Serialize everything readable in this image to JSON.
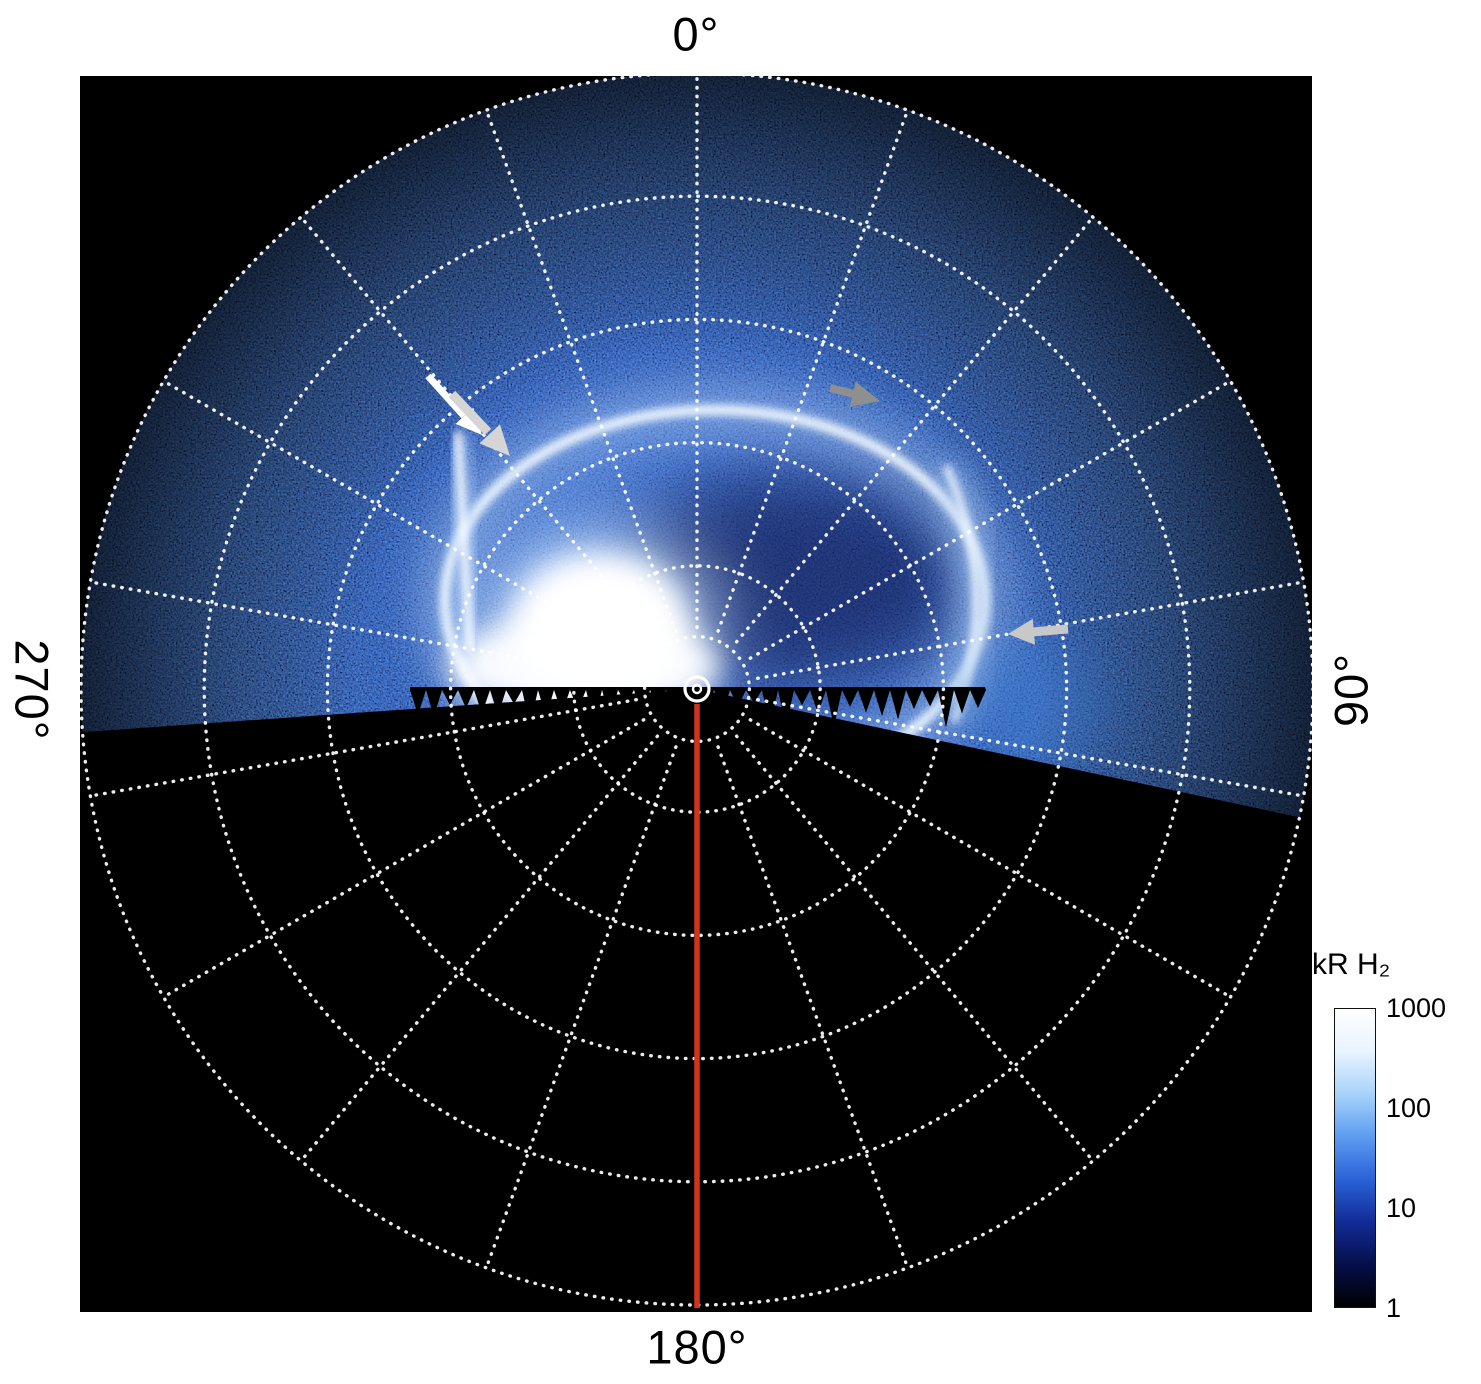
{
  "figure": {
    "angle_labels": {
      "top": "0°",
      "right": "90°",
      "bottom": "180°",
      "left": "270°"
    },
    "colorbar": {
      "title": "kR H₂",
      "ticks": [
        "1000",
        "100",
        "10",
        "1"
      ]
    }
  },
  "chart_data": {
    "type": "heatmap",
    "projection": "polar",
    "subject": "Polar projection map of auroral H2 emission intensity",
    "intensity_unit": "kR H₂",
    "intensity_scale": "log",
    "intensity_range": [
      1,
      1000
    ],
    "colorbar_ticks": [
      1000,
      100,
      10,
      1
    ],
    "colormap": [
      "#000000",
      "#060f4a",
      "#122c96",
      "#2a62d8",
      "#5d9cf0",
      "#a8d2fa",
      "#e8f4ff",
      "#ffffff"
    ],
    "angular_tick_labels": {
      "0": "0°",
      "90": "90°",
      "180": "180°",
      "270": "270°"
    },
    "grid": {
      "style": "dotted",
      "color": "#ffffff",
      "rings_fraction": [
        0.085,
        0.2,
        0.4,
        0.6,
        0.8,
        1.0
      ],
      "spoke_step_deg": 20,
      "spoke_inner_fraction": 0.1
    },
    "coverage_deg": [
      -94,
      102
    ],
    "background_color": "#000000",
    "meridian_marker": {
      "angle_deg": 180,
      "color": "#d2331c"
    },
    "pole_marker": {
      "symbol": "concentric-circles",
      "color": "#ffffff"
    },
    "features": [
      {
        "name": "main-auroral-oval",
        "description": "Bright auroral oval arc encircling the pole",
        "approx_radius_fraction": 0.38,
        "intensity_kR": "100-1000"
      },
      {
        "name": "bright-emission-patch",
        "description": "Saturated white emission patch left of the pole toward the 270° sector, reaching the data horizon",
        "intensity_kR": ">1000"
      },
      {
        "name": "isolated-arc-west",
        "description": "Narrow bright arc segment at upper left, marked by the white and light-gray arrows",
        "intensity_kR": "~1000"
      },
      {
        "name": "arc-segment-east",
        "description": "Bright curved arc segment on the right side, marked by a gray arrow",
        "intensity_kR": "~300"
      },
      {
        "name": "polar-cap-speckle",
        "description": "Faint noisy emission filling the observed fan-shaped sector",
        "intensity_kR": "1-10"
      },
      {
        "name": "dark-polar-interior",
        "description": "Darker region enclosed by the oval, upper right of the pole",
        "intensity_kR": "1-30"
      }
    ],
    "annotations": [
      {
        "id": "white-arrow-west",
        "type": "arrow",
        "color": "#ffffff",
        "target": "isolated-arc-west"
      },
      {
        "id": "gray-arrow-west",
        "type": "arrow",
        "color": "#d5d5d5",
        "target": "isolated-arc-west"
      },
      {
        "id": "gray-arrowhead-north",
        "type": "arrowhead",
        "color": "#8f8f8f",
        "target": "main-auroral-oval"
      },
      {
        "id": "gray-arrow-east",
        "type": "arrow",
        "color": "#c8c8c8",
        "target": "arc-segment-east"
      }
    ]
  }
}
